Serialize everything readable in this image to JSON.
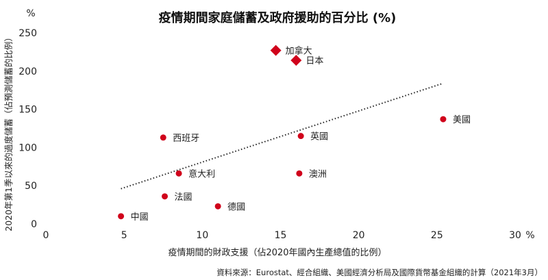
{
  "chart_data": {
    "type": "scatter",
    "title": "疫情期間家庭儲蓄及政府援助的百分比 (%)",
    "xlabel": "疫情期間的財政支援（佔2020年國內生產總值的比例）",
    "ylabel": "2020年第1季以來的過度儲蓄（佔預測儲蓄的比例）",
    "x_unit": "%",
    "y_unit": "%",
    "xlim": [
      0,
      30
    ],
    "ylim": [
      0,
      250
    ],
    "x_ticks": [
      "0",
      "5",
      "10",
      "15",
      "20",
      "25",
      "30"
    ],
    "y_ticks": [
      "0",
      "50",
      "100",
      "150",
      "200",
      "250"
    ],
    "grid": false,
    "points": [
      {
        "label": "中國",
        "x": 4.8,
        "y": 10,
        "marker": "circle"
      },
      {
        "label": "法國",
        "x": 7.6,
        "y": 36,
        "marker": "circle"
      },
      {
        "label": "意大利",
        "x": 8.5,
        "y": 66,
        "marker": "circle"
      },
      {
        "label": "西班牙",
        "x": 7.5,
        "y": 113,
        "marker": "circle"
      },
      {
        "label": "德國",
        "x": 11.0,
        "y": 23,
        "marker": "circle"
      },
      {
        "label": "英國",
        "x": 16.3,
        "y": 115,
        "marker": "circle"
      },
      {
        "label": "澳洲",
        "x": 16.2,
        "y": 66,
        "marker": "circle"
      },
      {
        "label": "美國",
        "x": 25.4,
        "y": 137,
        "marker": "circle"
      },
      {
        "label": "加拿大",
        "x": 14.7,
        "y": 227,
        "marker": "diamond"
      },
      {
        "label": "日本",
        "x": 16.0,
        "y": 214,
        "marker": "diamond"
      }
    ],
    "trendline": {
      "x": [
        4.8,
        25.4
      ],
      "y": [
        46,
        184
      ]
    },
    "source": "資料來源：Eurostat、經合組織、美國經濟分析局及國際貨幣基金組織的計算（2021年3月）",
    "colors": {
      "point": "#d0021b",
      "trend": "#222222",
      "text": "#222222"
    }
  }
}
